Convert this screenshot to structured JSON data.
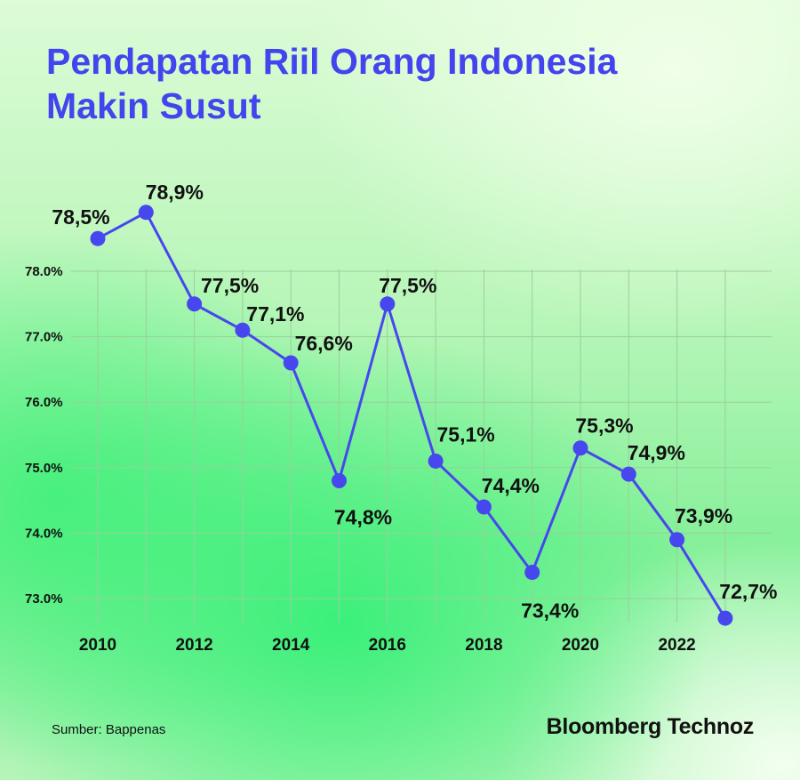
{
  "title_lines": [
    "Pendapatan Riil Orang Indonesia",
    "Makin Susut"
  ],
  "source": "Sumber: Bappenas",
  "brand": "Bloomberg Technoz",
  "colors": {
    "title": "#4444ee",
    "line": "#4747ef",
    "grid": "#9bcf9b"
  },
  "chart_data": {
    "type": "line",
    "title": "Pendapatan Riil Orang Indonesia Makin Susut",
    "xlabel": "",
    "ylabel": "",
    "x": [
      2010,
      2011,
      2012,
      2013,
      2014,
      2015,
      2016,
      2017,
      2018,
      2019,
      2020,
      2021,
      2022,
      2023
    ],
    "x_tick_labels": [
      "2010",
      "2012",
      "2014",
      "2016",
      "2018",
      "2020",
      "2022"
    ],
    "y_tick_values": [
      73,
      74,
      75,
      76,
      77,
      78
    ],
    "y_tick_labels": [
      "73.0%",
      "74.0%",
      "75.0%",
      "76.0%",
      "77.0%",
      "78.0%"
    ],
    "ylim": [
      72.7,
      78.9
    ],
    "grid": true,
    "series": [
      {
        "values": [
          78.5,
          78.9,
          77.5,
          77.1,
          76.6,
          74.8,
          77.5,
          75.1,
          74.4,
          73.4,
          75.3,
          74.9,
          73.9,
          72.7
        ],
        "labels": [
          "78,5%",
          "78,9%",
          "77,5%",
          "77,1%",
          "76,6%",
          "74,8%",
          "77,5%",
          "75,1%",
          "74,4%",
          "73,4%",
          "75,3%",
          "74,9%",
          "73,9%",
          "72,7%"
        ]
      }
    ]
  }
}
